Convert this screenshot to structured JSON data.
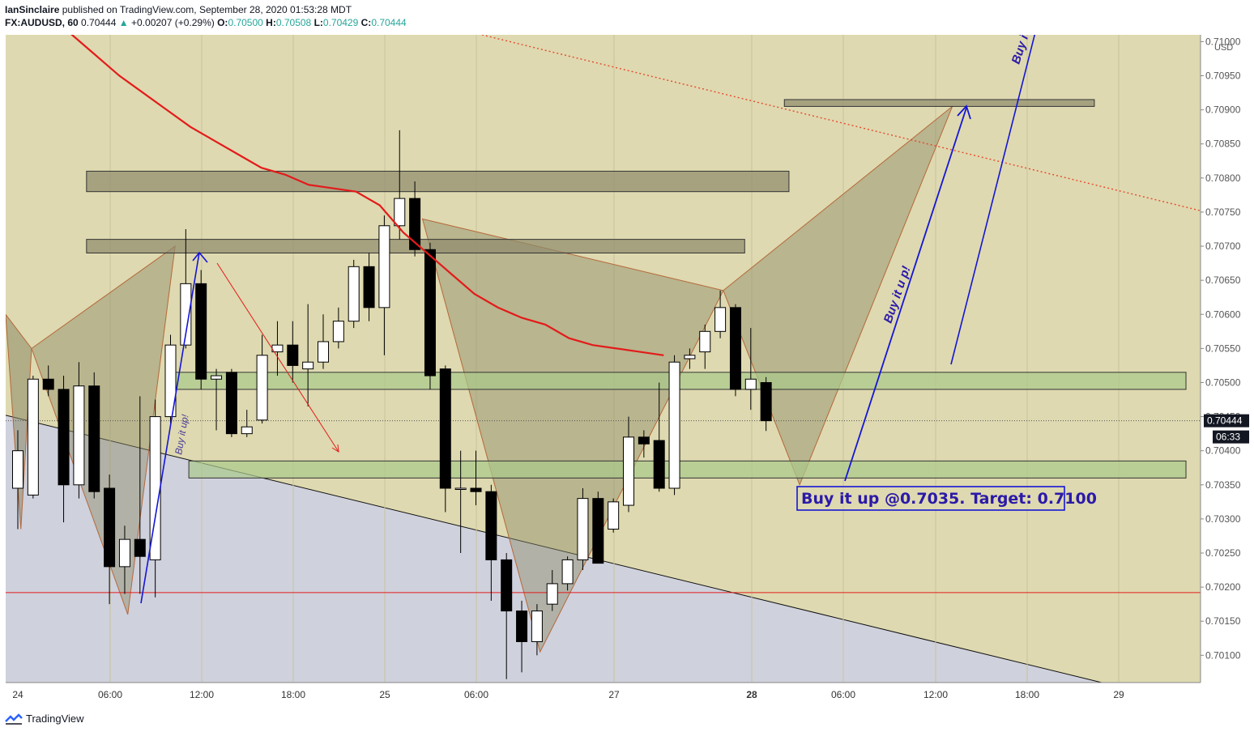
{
  "header": {
    "author": "IanSinclaire",
    "published": "published on TradingView.com, September 28, 2020 01:53:28 MDT",
    "symbol": "FX:AUDUSD, 60",
    "last": "0.70444",
    "change": "+0.00207 (+0.29%)",
    "o_label": "O:",
    "o": "0.70500",
    "h_label": "H:",
    "h": "0.70508",
    "l_label": "L:",
    "l": "0.70429",
    "c_label": "C:",
    "c": "0.70444"
  },
  "footer": {
    "brand": "TradingView",
    "logo_icon": "tradingview-logo-icon"
  },
  "colors": {
    "background": "#ded9b0",
    "up_candle": "#ffffff",
    "down_candle": "#000000",
    "ema": "#e31b1b",
    "arrows": "#1515d6",
    "zone_green": "#a9c98a",
    "zone_gray": "#8f8a6c",
    "channel_shade": "#cfd1dc",
    "annotation": "#2b1aa8"
  },
  "chart_data": {
    "type": "candlestick",
    "title": "",
    "currency_label": "USD",
    "y_ticks": [
      "0.71000",
      "0.70950",
      "0.70900",
      "0.70850",
      "0.70800",
      "0.70750",
      "0.70700",
      "0.70650",
      "0.70600",
      "0.70550",
      "0.70500",
      "0.70450",
      "0.70400",
      "0.70350",
      "0.70300",
      "0.70250",
      "0.70200",
      "0.70150",
      "0.70100"
    ],
    "ylim": [
      0.7006,
      0.7101
    ],
    "x_ticks": [
      "24",
      "06:00",
      "12:00",
      "18:00",
      "25",
      "06:00",
      "27",
      "28",
      "06:00",
      "12:00",
      "18:00",
      "29"
    ],
    "x_ticks_bold": [
      "28"
    ],
    "price_label": "0.70444",
    "countdown": "06:33",
    "candles": [
      {
        "o": 0.70345,
        "h": 0.7043,
        "l": 0.70285,
        "c": 0.704
      },
      {
        "o": 0.70335,
        "h": 0.7051,
        "l": 0.7033,
        "c": 0.70505
      },
      {
        "o": 0.70505,
        "h": 0.70525,
        "l": 0.7048,
        "c": 0.7049
      },
      {
        "o": 0.7049,
        "h": 0.7051,
        "l": 0.70295,
        "c": 0.7035
      },
      {
        "o": 0.7035,
        "h": 0.7053,
        "l": 0.7033,
        "c": 0.70495
      },
      {
        "o": 0.70495,
        "h": 0.70515,
        "l": 0.7033,
        "c": 0.7034
      },
      {
        "o": 0.70345,
        "h": 0.70365,
        "l": 0.70175,
        "c": 0.7023
      },
      {
        "o": 0.7023,
        "h": 0.7029,
        "l": 0.7019,
        "c": 0.7027
      },
      {
        "o": 0.7027,
        "h": 0.7048,
        "l": 0.7019,
        "c": 0.70245
      },
      {
        "o": 0.7024,
        "h": 0.70475,
        "l": 0.70185,
        "c": 0.7045
      },
      {
        "o": 0.7045,
        "h": 0.7057,
        "l": 0.7044,
        "c": 0.70555
      },
      {
        "o": 0.70555,
        "h": 0.70725,
        "l": 0.7055,
        "c": 0.70645
      },
      {
        "o": 0.70645,
        "h": 0.70665,
        "l": 0.7049,
        "c": 0.70505
      },
      {
        "o": 0.70505,
        "h": 0.7052,
        "l": 0.7043,
        "c": 0.7051
      },
      {
        "o": 0.70515,
        "h": 0.7052,
        "l": 0.7042,
        "c": 0.70425
      },
      {
        "o": 0.70425,
        "h": 0.7046,
        "l": 0.7042,
        "c": 0.70435
      },
      {
        "o": 0.70445,
        "h": 0.7057,
        "l": 0.7044,
        "c": 0.7054
      },
      {
        "o": 0.70545,
        "h": 0.7059,
        "l": 0.7051,
        "c": 0.70555
      },
      {
        "o": 0.70555,
        "h": 0.7059,
        "l": 0.705,
        "c": 0.70525
      },
      {
        "o": 0.7052,
        "h": 0.70615,
        "l": 0.70465,
        "c": 0.7053
      },
      {
        "o": 0.7053,
        "h": 0.706,
        "l": 0.7052,
        "c": 0.7056
      },
      {
        "o": 0.7056,
        "h": 0.7061,
        "l": 0.7055,
        "c": 0.7059
      },
      {
        "o": 0.7059,
        "h": 0.7068,
        "l": 0.7058,
        "c": 0.7067
      },
      {
        "o": 0.7067,
        "h": 0.7069,
        "l": 0.7059,
        "c": 0.7061
      },
      {
        "o": 0.7061,
        "h": 0.70745,
        "l": 0.7054,
        "c": 0.7073
      },
      {
        "o": 0.7073,
        "h": 0.7087,
        "l": 0.7071,
        "c": 0.7077
      },
      {
        "o": 0.7077,
        "h": 0.70795,
        "l": 0.70685,
        "c": 0.70695
      },
      {
        "o": 0.70695,
        "h": 0.70705,
        "l": 0.7049,
        "c": 0.7051
      },
      {
        "o": 0.7052,
        "h": 0.70525,
        "l": 0.7031,
        "c": 0.70345
      },
      {
        "o": 0.70345,
        "h": 0.704,
        "l": 0.7025,
        "c": 0.70345
      },
      {
        "o": 0.70345,
        "h": 0.704,
        "l": 0.7032,
        "c": 0.7034
      },
      {
        "o": 0.7034,
        "h": 0.7035,
        "l": 0.7018,
        "c": 0.7024
      },
      {
        "o": 0.7024,
        "h": 0.7025,
        "l": 0.70065,
        "c": 0.70165
      },
      {
        "o": 0.70165,
        "h": 0.7018,
        "l": 0.70075,
        "c": 0.7012
      },
      {
        "o": 0.7012,
        "h": 0.70175,
        "l": 0.701,
        "c": 0.70165
      },
      {
        "o": 0.70175,
        "h": 0.70225,
        "l": 0.70165,
        "c": 0.70205
      },
      {
        "o": 0.70205,
        "h": 0.70245,
        "l": 0.70195,
        "c": 0.7024
      },
      {
        "o": 0.7024,
        "h": 0.70345,
        "l": 0.70225,
        "c": 0.7033
      },
      {
        "o": 0.7033,
        "h": 0.7034,
        "l": 0.70235,
        "c": 0.70235
      },
      {
        "o": 0.70285,
        "h": 0.7033,
        "l": 0.7028,
        "c": 0.70325
      },
      {
        "o": 0.7032,
        "h": 0.7045,
        "l": 0.7031,
        "c": 0.7042
      },
      {
        "o": 0.7042,
        "h": 0.7043,
        "l": 0.7039,
        "c": 0.7041
      },
      {
        "o": 0.70415,
        "h": 0.705,
        "l": 0.7034,
        "c": 0.70345
      },
      {
        "o": 0.70345,
        "h": 0.7054,
        "l": 0.70335,
        "c": 0.7053
      },
      {
        "o": 0.70535,
        "h": 0.7055,
        "l": 0.7052,
        "c": 0.7054
      },
      {
        "o": 0.70545,
        "h": 0.70585,
        "l": 0.7052,
        "c": 0.70575
      },
      {
        "o": 0.70575,
        "h": 0.70635,
        "l": 0.70565,
        "c": 0.7061
      },
      {
        "o": 0.7061,
        "h": 0.70615,
        "l": 0.7048,
        "c": 0.7049
      },
      {
        "o": 0.7049,
        "h": 0.7058,
        "l": 0.7046,
        "c": 0.70505
      },
      {
        "o": 0.705,
        "h": 0.70508,
        "l": 0.70429,
        "c": 0.70444
      }
    ],
    "ema": [
      0.7104,
      0.7101,
      0.7098,
      0.7095,
      0.70925,
      0.709,
      0.70875,
      0.70855,
      0.70835,
      0.70815,
      0.70805,
      0.7079,
      0.70785,
      0.7078,
      0.7076,
      0.7072,
      0.7069,
      0.7066,
      0.7063,
      0.7061,
      0.70595,
      0.70585,
      0.70565,
      0.70555,
      0.7055,
      0.70545,
      0.7054
    ],
    "ema_start_index": 8,
    "zones": [
      {
        "from_index": 4.5,
        "to_index": 50.5,
        "top": 0.7081,
        "bottom": 0.7078,
        "color": "gray"
      },
      {
        "from_index": 4.5,
        "to_index": 47.6,
        "top": 0.7071,
        "bottom": 0.7069,
        "color": "gray"
      },
      {
        "from_index": 50.2,
        "to_index": 70.5,
        "top": 0.70915,
        "bottom": 0.70905,
        "color": "gray"
      },
      {
        "from_index": 10.2,
        "to_index": 76.5,
        "top": 0.70515,
        "bottom": 0.7049,
        "color": "green"
      },
      {
        "from_index": 11.2,
        "to_index": 76.5,
        "top": 0.70385,
        "bottom": 0.7036,
        "color": "green"
      }
    ],
    "annotations": [
      {
        "text": "Buy it up @0.7035. Target: 0.7100",
        "kind": "box"
      },
      {
        "text": "Buy it u p!",
        "kind": "rotated"
      },
      {
        "text": "Buy it up!",
        "kind": "rotated-small"
      },
      {
        "text": "Buy i",
        "kind": "rotated-clipped"
      }
    ]
  }
}
